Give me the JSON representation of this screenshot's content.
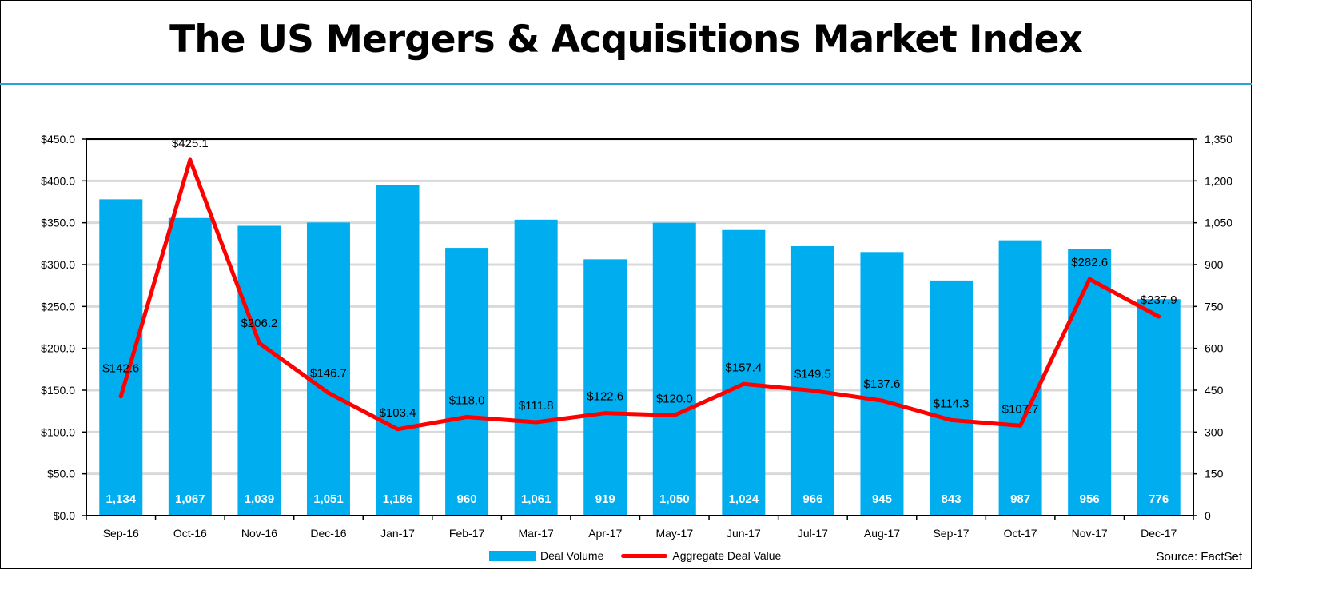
{
  "title": "The US Mergers & Acquisitions Market Index",
  "source": "Source: FactSet",
  "colors": {
    "bar": "#00aeef",
    "line": "#ff0000",
    "title_rule": "#29a3d6",
    "grid": "#d9d9d9"
  },
  "chart_data": {
    "type": "bar",
    "title": "The US Mergers & Acquisitions Market Index",
    "categories": [
      "Sep-16",
      "Oct-16",
      "Nov-16",
      "Dec-16",
      "Jan-17",
      "Feb-17",
      "Mar-17",
      "Apr-17",
      "May-17",
      "Jun-17",
      "Jul-17",
      "Aug-17",
      "Sep-17",
      "Oct-17",
      "Nov-17",
      "Dec-17"
    ],
    "series": [
      {
        "name": "Deal Volume",
        "type": "bar",
        "axis": "right",
        "values": [
          1134,
          1067,
          1039,
          1051,
          1186,
          960,
          1061,
          919,
          1050,
          1024,
          966,
          945,
          843,
          987,
          956,
          776
        ],
        "labels": [
          "1,134",
          "1,067",
          "1,039",
          "1,051",
          "1,186",
          "960",
          "1,061",
          "919",
          "1,050",
          "1,024",
          "966",
          "945",
          "843",
          "987",
          "956",
          "776"
        ]
      },
      {
        "name": "Aggregate Deal Value",
        "type": "line",
        "axis": "left",
        "values": [
          142.6,
          425.1,
          206.2,
          146.7,
          103.4,
          118.0,
          111.8,
          122.6,
          120.0,
          157.4,
          149.5,
          137.6,
          114.3,
          107.7,
          282.6,
          237.9
        ],
        "labels": [
          "$142.6",
          "$425.1",
          "$206.2",
          "$146.7",
          "$103.4",
          "$118.0",
          "$111.8",
          "$122.6",
          "$120.0",
          "$157.4",
          "$149.5",
          "$137.6",
          "$114.3",
          "$107.7",
          "$282.6",
          "$237.9"
        ]
      }
    ],
    "y_left": {
      "min": 0,
      "max": 450,
      "step": 50,
      "tick_labels": [
        "$0.0",
        "$50.0",
        "$100.0",
        "$150.0",
        "$200.0",
        "$250.0",
        "$300.0",
        "$350.0",
        "$400.0",
        "$450.0"
      ]
    },
    "y_right": {
      "min": 0,
      "max": 1350,
      "step": 150,
      "tick_labels": [
        "0",
        "150",
        "300",
        "450",
        "600",
        "750",
        "900",
        "1,050",
        "1,200",
        "1,350"
      ]
    },
    "xlabel": "",
    "ylabel": "",
    "grid": true,
    "legend": {
      "position": "bottom-center",
      "entries": [
        "Deal Volume",
        "Aggregate Deal Value"
      ]
    }
  }
}
